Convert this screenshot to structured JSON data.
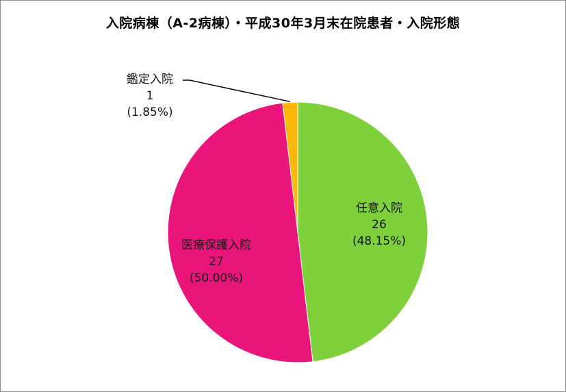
{
  "chart_data": {
    "type": "pie",
    "title": "入院病棟（A-2病棟）・平成30年3月末在院患者・入院形態",
    "slices": [
      {
        "name": "任意入院",
        "value": 26,
        "percent": "(48.15%)",
        "color": "#7fd13b"
      },
      {
        "name": "医療保護入院",
        "value": 27,
        "percent": "(50.00%)",
        "color": "#ea157a"
      },
      {
        "name": "鑑定入院",
        "value": 1,
        "percent": "(1.85%)",
        "color": "#feb80a"
      }
    ],
    "legend": "none",
    "start_angle": "12 o'clock",
    "direction": "clockwise"
  }
}
